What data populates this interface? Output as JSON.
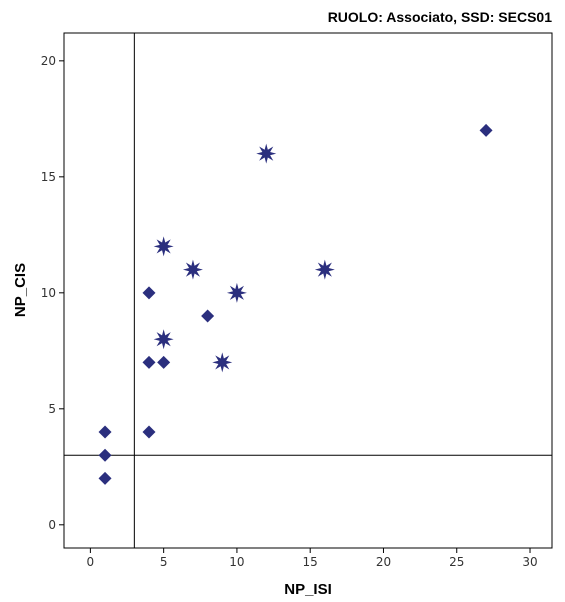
{
  "chart_data": {
    "type": "scatter",
    "title": "RUOLO: Associato, SSD: SECS01",
    "xlabel": "NP_ISI",
    "ylabel": "NP_CIS",
    "xlim": [
      -1.8,
      31.5
    ],
    "ylim": [
      -1.0,
      21.2
    ],
    "xticks": [
      0,
      5,
      10,
      15,
      20,
      25,
      30
    ],
    "yticks": [
      0,
      5,
      10,
      15,
      20
    ],
    "grid": false,
    "reference_lines": {
      "x": 3,
      "y": 3
    },
    "marker_color": "#2b2f7e",
    "series": [
      {
        "marker": "diamond",
        "points": [
          {
            "x": 1,
            "y": 2
          },
          {
            "x": 1,
            "y": 3
          },
          {
            "x": 1,
            "y": 4
          },
          {
            "x": 4,
            "y": 4
          },
          {
            "x": 4,
            "y": 7
          },
          {
            "x": 5,
            "y": 7
          },
          {
            "x": 4,
            "y": 10
          },
          {
            "x": 8,
            "y": 9
          },
          {
            "x": 27,
            "y": 17
          }
        ]
      },
      {
        "marker": "star",
        "points": [
          {
            "x": 5,
            "y": 8
          },
          {
            "x": 9,
            "y": 7
          },
          {
            "x": 10,
            "y": 10
          },
          {
            "x": 7,
            "y": 11
          },
          {
            "x": 5,
            "y": 12
          },
          {
            "x": 16,
            "y": 11
          },
          {
            "x": 12,
            "y": 16
          }
        ]
      }
    ]
  }
}
